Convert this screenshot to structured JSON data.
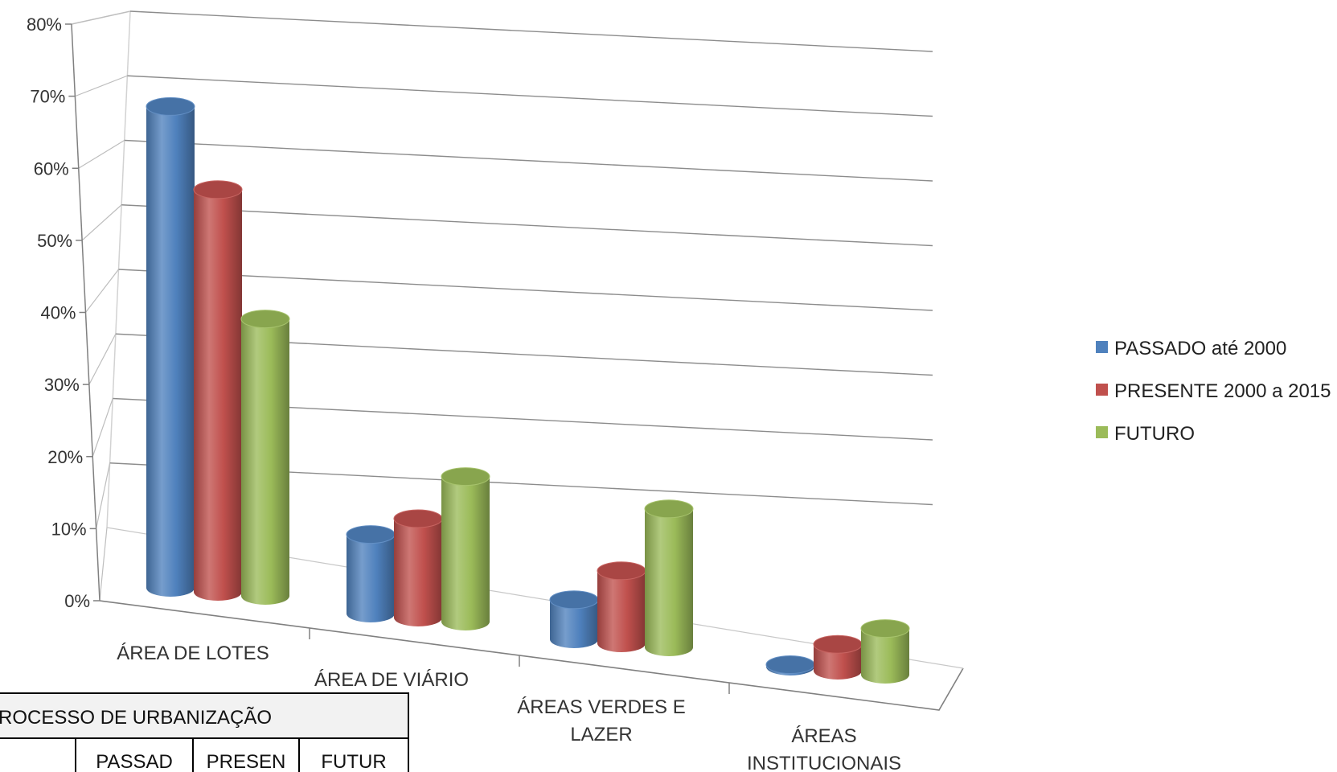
{
  "chart_data": {
    "type": "bar",
    "categories": [
      [
        "ÁREA DE LOTES"
      ],
      [
        "ÁREA DE VIÁRIO"
      ],
      [
        "ÁREAS VERDES E",
        "LAZER"
      ],
      [
        "ÁREAS",
        "INSTITUCIONAIS"
      ]
    ],
    "series": [
      {
        "name": "PASSADO até 2000",
        "values": [
          73,
          12,
          6,
          0.3
        ],
        "color": "#4f81bd"
      },
      {
        "name": "PRESENTE 2000 a 2015",
        "values": [
          61,
          15,
          11,
          4
        ],
        "color": "#c0504d"
      },
      {
        "name": "FUTURO",
        "values": [
          42,
          22,
          21,
          7
        ],
        "color": "#9bbb59"
      }
    ],
    "y_ticks": [
      "0%",
      "10%",
      "20%",
      "30%",
      "40%",
      "50%",
      "60%",
      "70%",
      "80%"
    ],
    "ylim": [
      0,
      80
    ],
    "grid": true,
    "legend_position": "right",
    "title": "",
    "xlabel": "",
    "ylabel": ""
  },
  "table": {
    "title": "ROCESSO DE URBANIZAÇÃO",
    "headers": [
      "PASSAD",
      "PRESEN",
      "FUTUR"
    ]
  }
}
